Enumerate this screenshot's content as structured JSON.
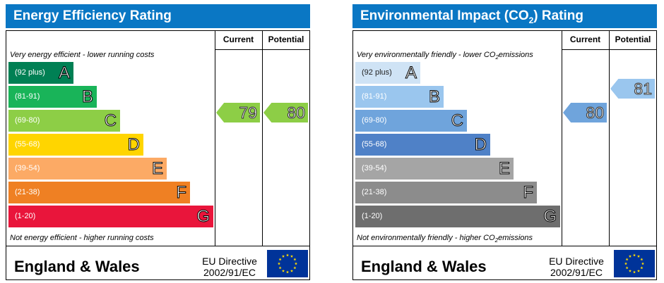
{
  "chart_data": [
    {
      "type": "bar",
      "title": "Energy Efficiency Rating",
      "title_color": "#0a77c4",
      "columns": [
        "Current",
        "Potential"
      ],
      "top_caption": "Very energy efficient - lower running costs",
      "bottom_caption": "Not energy efficient - higher running costs",
      "bands": [
        {
          "range": "(92 plus)",
          "letter": "A",
          "color": "#008054",
          "rank": 1
        },
        {
          "range": "(81-91)",
          "letter": "B",
          "color": "#19b459",
          "rank": 2
        },
        {
          "range": "(69-80)",
          "letter": "C",
          "color": "#8dce46",
          "rank": 3
        },
        {
          "range": "(55-68)",
          "letter": "D",
          "color": "#ffd500",
          "rank": 4
        },
        {
          "range": "(39-54)",
          "letter": "E",
          "color": "#fcaa65",
          "rank": 5
        },
        {
          "range": "(21-38)",
          "letter": "F",
          "color": "#ef8023",
          "rank": 6
        },
        {
          "range": "(1-20)",
          "letter": "G",
          "color": "#e9153b",
          "rank": 7
        }
      ],
      "current": {
        "value": 79,
        "band": "C",
        "color": "#8dce46"
      },
      "potential": {
        "value": 80,
        "band": "C",
        "color": "#8dce46"
      },
      "footer_label": "England & Wales",
      "directive_line1": "EU Directive",
      "directive_line2": "2002/91/EC"
    },
    {
      "type": "bar",
      "title_main": "Environmental Impact (CO",
      "title_sub": "2",
      "title_end": ") Rating",
      "title_color": "#0a77c4",
      "columns": [
        "Current",
        "Potential"
      ],
      "top_caption_main": "Very environmentally friendly - lower CO",
      "top_caption_sub": "2",
      "top_caption_end": "emissions",
      "bottom_caption_main": "Not environmentally friendly - higher CO",
      "bottom_caption_sub": "2",
      "bottom_caption_end": "emissions",
      "bands": [
        {
          "range": "(92 plus)",
          "letter": "A",
          "color": "#cfe3f5",
          "rank": 1
        },
        {
          "range": "(81-91)",
          "letter": "B",
          "color": "#9ac6ee",
          "rank": 2
        },
        {
          "range": "(69-80)",
          "letter": "C",
          "color": "#6fa4dc",
          "rank": 3
        },
        {
          "range": "(55-68)",
          "letter": "D",
          "color": "#4f81c7",
          "rank": 4
        },
        {
          "range": "(39-54)",
          "letter": "E",
          "color": "#a5a5a5",
          "rank": 5
        },
        {
          "range": "(21-38)",
          "letter": "F",
          "color": "#8c8c8c",
          "rank": 6
        },
        {
          "range": "(1-20)",
          "letter": "G",
          "color": "#6e6e6e",
          "rank": 7
        }
      ],
      "current": {
        "value": 80,
        "band": "C",
        "color": "#6fa4dc"
      },
      "potential": {
        "value": 81,
        "band": "B",
        "color": "#9ac6ee"
      },
      "footer_label": "England & Wales",
      "directive_line1": "EU Directive",
      "directive_line2": "2002/91/EC"
    }
  ]
}
